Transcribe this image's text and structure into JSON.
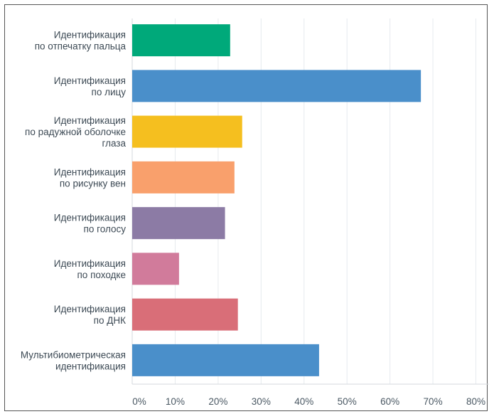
{
  "chart_data": {
    "type": "bar",
    "orientation": "horizontal",
    "categories": [
      [
        "Идентификация",
        "по отпечатку пальца"
      ],
      [
        "Идентификация",
        "по лицу"
      ],
      [
        "Идентификация",
        "по радужной оболочке",
        "глаза"
      ],
      [
        "Идентификация",
        "по рисунку вен"
      ],
      [
        "Идентификация",
        "по голосу"
      ],
      [
        "Идентификация",
        "по походке"
      ],
      [
        "Идентификация",
        "по ДНК"
      ],
      [
        "Мультибиометрическая",
        "идентификация"
      ]
    ],
    "values": [
      22.8,
      67.2,
      25.6,
      23.8,
      21.6,
      10.9,
      24.6,
      43.5
    ],
    "colors": [
      "#00a97a",
      "#4a8fca",
      "#f5bf1f",
      "#f9a06c",
      "#8c7ba5",
      "#d17b9b",
      "#d96e78",
      "#4a8fca"
    ],
    "xlim": [
      0,
      80
    ],
    "xticks": [
      "0%",
      "10%",
      "20%",
      "30%",
      "40%",
      "50%",
      "60%",
      "70%",
      "80%"
    ],
    "grid": true,
    "title": "",
    "xlabel": "",
    "ylabel": ""
  }
}
